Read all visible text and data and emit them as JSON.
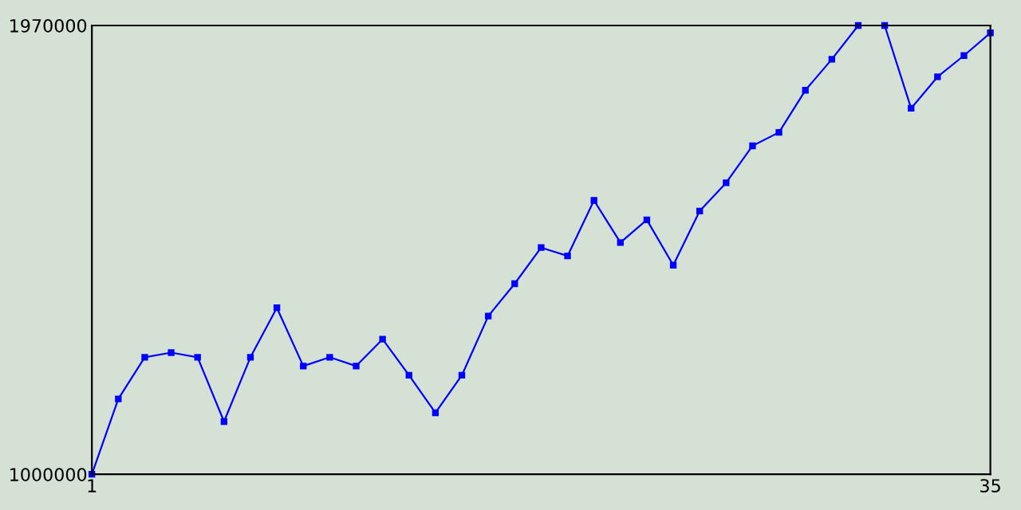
{
  "chart_data": {
    "type": "line",
    "x": [
      1,
      2,
      3,
      4,
      5,
      6,
      7,
      8,
      9,
      10,
      11,
      12,
      13,
      14,
      15,
      16,
      17,
      18,
      19,
      20,
      21,
      22,
      23,
      24,
      25,
      26,
      27,
      28,
      29,
      30,
      31,
      32,
      33,
      34,
      35
    ],
    "series": [
      {
        "color": "#0000ff",
        "values": [
          1000000,
          1163000,
          1253000,
          1263000,
          1253000,
          1114000,
          1253000,
          1360000,
          1234000,
          1253000,
          1234000,
          1292000,
          1214000,
          1133000,
          1214000,
          1342000,
          1412000,
          1490000,
          1472000,
          1592000,
          1501000,
          1550000,
          1452000,
          1569000,
          1630000,
          1710000,
          1739000,
          1830000,
          1897000,
          1970000,
          1970000,
          1791000,
          1859000,
          1905000,
          1954000
        ]
      }
    ],
    "xlim": [
      1,
      35
    ],
    "xticks": [
      1,
      35
    ],
    "ylim": [
      1000000,
      1970000
    ],
    "yticks": [
      1000000,
      1970000
    ],
    "grid": false,
    "legend": false,
    "marker": "square",
    "line_style": "solid"
  }
}
